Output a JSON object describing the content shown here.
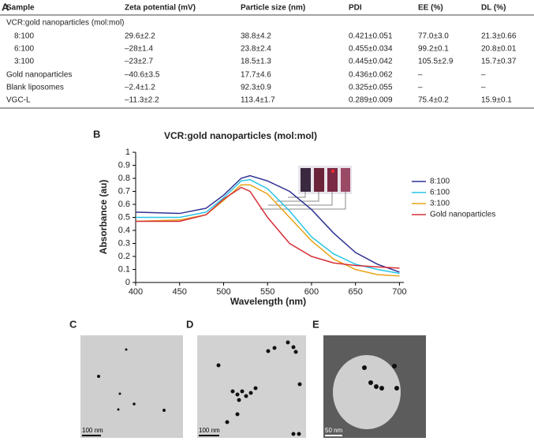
{
  "panel_labels": [
    "A",
    "B"
  ],
  "table": {
    "header": [
      "Sample",
      "Zeta potential (mV)",
      "Particle size (nm)",
      "PDI",
      "EE (%)",
      "DL (%)"
    ],
    "rows": [
      [
        "VCR:gold nanoparticles (mol:mol)"
      ],
      [
        "8:100",
        "29.6±2.2",
        "38.8±4.2",
        "0.421±0.051",
        "77.0±3.0",
        "21.3±0.66"
      ],
      [
        "6:100",
        "–28±1.4",
        "23.8±2.4",
        "0.455±0.034",
        "99.2±0.1",
        "20.8±0.01"
      ],
      [
        "3:100",
        "–23±2.7",
        "18.5±1.3",
        "0.445±0.042",
        "105.5±2.9",
        "15.7±0.37"
      ],
      [
        "Gold nanoparticles",
        "–40.6±3.5",
        "17.7±4.6",
        "0.436±0.062",
        "–",
        "–"
      ],
      [
        "Blank liposomes",
        "–2.4±1.2",
        "92.3±0.9",
        "0.325±0.055",
        "–",
        "–"
      ],
      [
        "VGC-L",
        "–11.3±2.2",
        "113.4±1.7",
        "0.289±0.009",
        "75.4±0.2",
        "15.9±0.1"
      ]
    ]
  },
  "chart_data": {
    "type": "line",
    "title": "VCR:gold nanoparticles (mol:mol)",
    "x_label": "Wavelength (nm)",
    "y_label": "Absorbance (au)",
    "x": [
      400,
      450,
      480,
      500,
      520,
      530,
      550,
      575,
      600,
      625,
      650,
      675,
      700
    ],
    "series": [
      {
        "name": "8:100",
        "color": "#2e3192",
        "values": [
          0.54,
          0.53,
          0.57,
          0.67,
          0.8,
          0.82,
          0.78,
          0.7,
          0.56,
          0.38,
          0.23,
          0.14,
          0.08
        ]
      },
      {
        "name": "6:100",
        "color": "#29c5e6",
        "values": [
          0.5,
          0.5,
          0.54,
          0.65,
          0.78,
          0.79,
          0.72,
          0.55,
          0.35,
          0.22,
          0.14,
          0.1,
          0.07
        ]
      },
      {
        "name": "3:100",
        "color": "#e8a317",
        "values": [
          0.47,
          0.48,
          0.52,
          0.63,
          0.75,
          0.75,
          0.68,
          0.5,
          0.32,
          0.18,
          0.1,
          0.06,
          0.05
        ]
      },
      {
        "name": "Gold nanoparticles",
        "color": "#d6303a",
        "values": [
          0.47,
          0.47,
          0.52,
          0.64,
          0.73,
          0.7,
          0.5,
          0.3,
          0.2,
          0.15,
          0.13,
          0.12,
          0.11
        ]
      }
    ],
    "xlim": [
      400,
      705
    ],
    "xticks": [
      400,
      450,
      500,
      550,
      600,
      650,
      700
    ],
    "ylim": [
      0,
      1
    ],
    "yticks": [
      0,
      0.1,
      0.2,
      0.3,
      0.4,
      0.5,
      0.6,
      0.7,
      0.8,
      0.9,
      1
    ]
  },
  "images": [
    {
      "label": "C",
      "scale_bar": "100 nm"
    },
    {
      "label": "D",
      "scale_bar": "100 nm"
    },
    {
      "label": "E",
      "scale_bar": "50 nm"
    }
  ]
}
